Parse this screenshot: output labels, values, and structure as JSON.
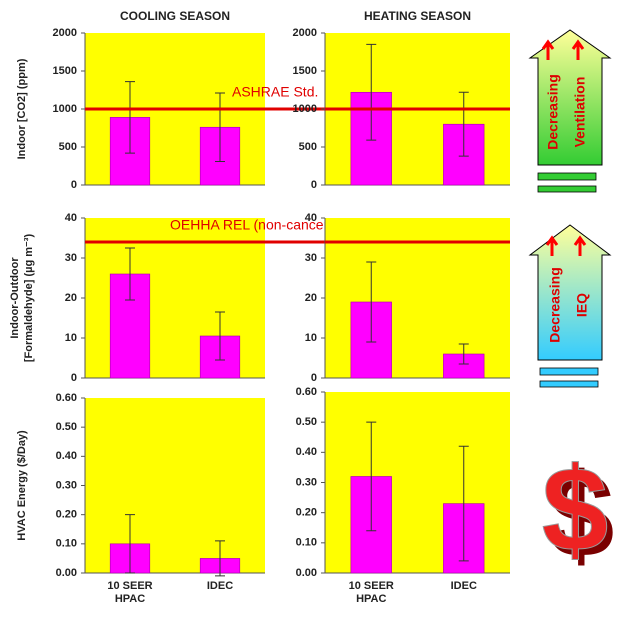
{
  "chart_data": [
    {
      "type": "bar",
      "title": "COOLING SEASON",
      "ylabel": [
        "Indoor [CO2] (ppm)"
      ],
      "categories": [
        null,
        null
      ],
      "values": [
        890,
        760
      ],
      "error": [
        470,
        450
      ],
      "color": "#ff00ff",
      "panel_color": "#ffff00",
      "ylim": [
        0,
        2000
      ],
      "yticks": [
        0,
        500,
        1000,
        1500,
        2000
      ],
      "reference": {
        "value": 1000,
        "color": "#e00000"
      }
    },
    {
      "type": "bar",
      "title": "HEATING SEASON",
      "categories": [
        null,
        null
      ],
      "values": [
        1220,
        800
      ],
      "error": [
        630,
        420
      ],
      "color": "#ff00ff",
      "panel_color": "#ffff00",
      "ylim": [
        0,
        2000
      ],
      "yticks": [
        0,
        500,
        1000,
        1500,
        2000
      ],
      "reference": {
        "value": 1000,
        "label": "ASHRAE Std.",
        "color": "#e00000"
      }
    },
    {
      "type": "bar",
      "ylabel": [
        "Indoor-Outdoor",
        "[Formaldehyde] (µg m⁻³)"
      ],
      "categories": [
        null,
        null
      ],
      "values": [
        26,
        10.5
      ],
      "error": [
        6.5,
        6
      ],
      "color": "#ff00ff",
      "panel_color": "#ffff00",
      "ylim": [
        0,
        40
      ],
      "yticks": [
        0,
        10,
        20,
        30,
        40
      ],
      "reference": {
        "value": 34,
        "label": "OEHHA REL (non-cancer)",
        "color": "#e00000"
      }
    },
    {
      "type": "bar",
      "categories": [
        null,
        null
      ],
      "values": [
        19,
        6
      ],
      "error": [
        10,
        2.5
      ],
      "color": "#ff00ff",
      "panel_color": "#ffff00",
      "ylim": [
        0,
        40
      ],
      "yticks": [
        0,
        10,
        20,
        30,
        40
      ],
      "reference": {
        "value": 34,
        "color": "#e00000"
      }
    },
    {
      "type": "bar",
      "ylabel": [
        "HVAC Energy ($/Day)"
      ],
      "categories": [
        [
          "10 SEER",
          "HPAC"
        ],
        [
          "IDEC"
        ]
      ],
      "values": [
        0.1,
        0.05
      ],
      "error": [
        0.1,
        0.06
      ],
      "color": "#ff00ff",
      "panel_color": "#ffff00",
      "ylim": [
        0,
        0.6
      ],
      "yticks": [
        {
          "value": 0,
          "label": "0.00"
        },
        {
          "value": 0.1,
          "label": "0.10"
        },
        {
          "value": 0.2,
          "label": "0.20"
        },
        {
          "value": 0.3,
          "label": "0.30"
        },
        {
          "value": 0.4,
          "label": "0.40"
        },
        {
          "value": 0.5,
          "label": "0.50"
        },
        {
          "value": 0.6,
          "label": "0.60"
        }
      ]
    },
    {
      "type": "bar",
      "categories": [
        [
          "10 SEER",
          "HPAC"
        ],
        [
          "IDEC"
        ]
      ],
      "values": [
        0.32,
        0.23
      ],
      "error": [
        0.18,
        0.19
      ],
      "color": "#ff00ff",
      "panel_color": "#ffff00",
      "ylim": [
        0,
        0.6
      ],
      "yticks": [
        {
          "value": 0,
          "label": "0.00"
        },
        {
          "value": 0.1,
          "label": "0.10"
        },
        {
          "value": 0.2,
          "label": "0.20"
        },
        {
          "value": 0.3,
          "label": "0.30"
        },
        {
          "value": 0.4,
          "label": "0.40"
        },
        {
          "value": 0.5,
          "label": "0.50"
        },
        {
          "value": 0.6,
          "label": "0.60"
        }
      ]
    }
  ],
  "side_panels": [
    {
      "lines": [
        "Decreasing",
        "Ventilation"
      ]
    },
    {
      "lines": [
        "Decreasing",
        "IEQ"
      ]
    }
  ],
  "dollar": "$"
}
